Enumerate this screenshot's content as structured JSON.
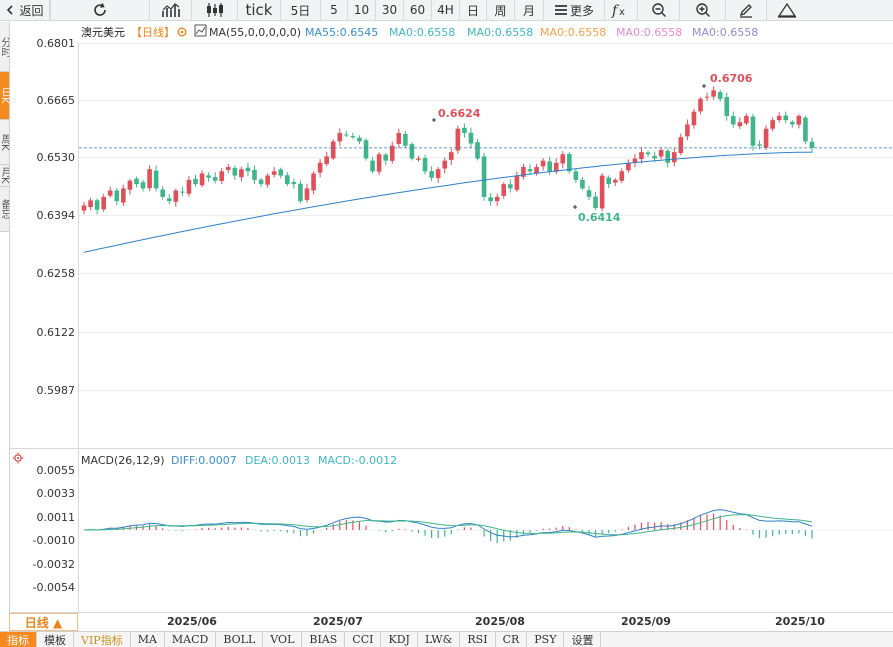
{
  "toolbar": {
    "back_label": "返回",
    "tick_label": "tick",
    "periods": [
      "5日",
      "5",
      "10",
      "30",
      "60",
      "4H",
      "日",
      "周",
      "月"
    ],
    "more_label": "更多"
  },
  "side_tabs": [
    "分时",
    "日K",
    "周K",
    "月K",
    "备忘"
  ],
  "chart": {
    "symbol": "澳元美元",
    "period_tag": "【日线】",
    "ma_title": "MA(55,0,0,0,0,0)",
    "ma_values": [
      {
        "label": "MA55:0.6545",
        "color": "#3a8ecc"
      },
      {
        "label": "MA0:0.6558",
        "color": "#41b6c4"
      },
      {
        "label": "MA0:0.6558",
        "color": "#41b6c4"
      },
      {
        "label": "MA0:0.6558",
        "color": "#f0a24a"
      },
      {
        "label": "MA0:0.6558",
        "color": "#e58bc9"
      },
      {
        "label": "MA0:0.6558",
        "color": "#8d8ed6"
      }
    ],
    "y_ticks": [
      "0.6801",
      "0.6665",
      "0.6530",
      "0.6394",
      "0.6258",
      "0.6122",
      "0.5987"
    ],
    "annotations": {
      "high": "0.6706",
      "mid_high": "0.6624",
      "low": "0.6414"
    },
    "current_price_ref": 0.6555
  },
  "macd": {
    "title": "MACD(26,12,9)",
    "diff_label": "DIFF:0.0007",
    "dea_label": "DEA:0.0013",
    "macd_label": "MACD:-0.0012",
    "y_ticks": [
      "0.0055",
      "0.0033",
      "0.0011",
      "-0.0010",
      "-0.0032",
      "-0.0054"
    ]
  },
  "x_ticks": [
    "2025/06",
    "2025/07",
    "2025/08",
    "2025/09",
    "2025/10"
  ],
  "period_button": "日线 ▲",
  "bottom_tabs": [
    "指标",
    "模板",
    "VIP指标",
    "MA",
    "MACD",
    "BOLL",
    "VOL",
    "BIAS",
    "CCI",
    "KDJ",
    "LW&",
    "RSI",
    "CR",
    "PSY",
    "设置"
  ],
  "colors": {
    "up": "#e0505a",
    "down": "#3fb58a",
    "ma55": "#2f80c8",
    "accent": "#f68a1f"
  },
  "chart_data": {
    "type": "candlestick",
    "price_range": [
      0.5987,
      0.6801
    ],
    "closes": [
      0.642,
      0.6432,
      0.641,
      0.644,
      0.6455,
      0.643,
      0.646,
      0.6478,
      0.647,
      0.646,
      0.6505,
      0.646,
      0.644,
      0.643,
      0.6455,
      0.645,
      0.648,
      0.647,
      0.6495,
      0.6485,
      0.6478,
      0.65,
      0.651,
      0.649,
      0.6505,
      0.65,
      0.648,
      0.647,
      0.649,
      0.65,
      0.649,
      0.647,
      0.647,
      0.643,
      0.646,
      0.6495,
      0.652,
      0.6535,
      0.657,
      0.659,
      0.6585,
      0.658,
      0.657,
      0.653,
      0.65,
      0.654,
      0.6525,
      0.656,
      0.659,
      0.656,
      0.653,
      0.653,
      0.65,
      0.6485,
      0.6505,
      0.6525,
      0.6545,
      0.66,
      0.659,
      0.6565,
      0.653,
      0.644,
      0.643,
      0.644,
      0.647,
      0.646,
      0.649,
      0.651,
      0.65,
      0.651,
      0.6525,
      0.65,
      0.652,
      0.654,
      0.65,
      0.648,
      0.646,
      0.644,
      0.6414,
      0.649,
      0.647,
      0.648,
      0.65,
      0.652,
      0.653,
      0.6545,
      0.654,
      0.653,
      0.655,
      0.652,
      0.6545,
      0.658,
      0.661,
      0.664,
      0.667,
      0.6675,
      0.669,
      0.667,
      0.663,
      0.661,
      0.6615,
      0.663,
      0.656,
      0.656,
      0.66,
      0.662,
      0.663,
      0.662,
      0.661,
      0.663,
      0.657,
      0.6555
    ],
    "ma55_start": 0.631,
    "ma55_end": 0.6545
  }
}
